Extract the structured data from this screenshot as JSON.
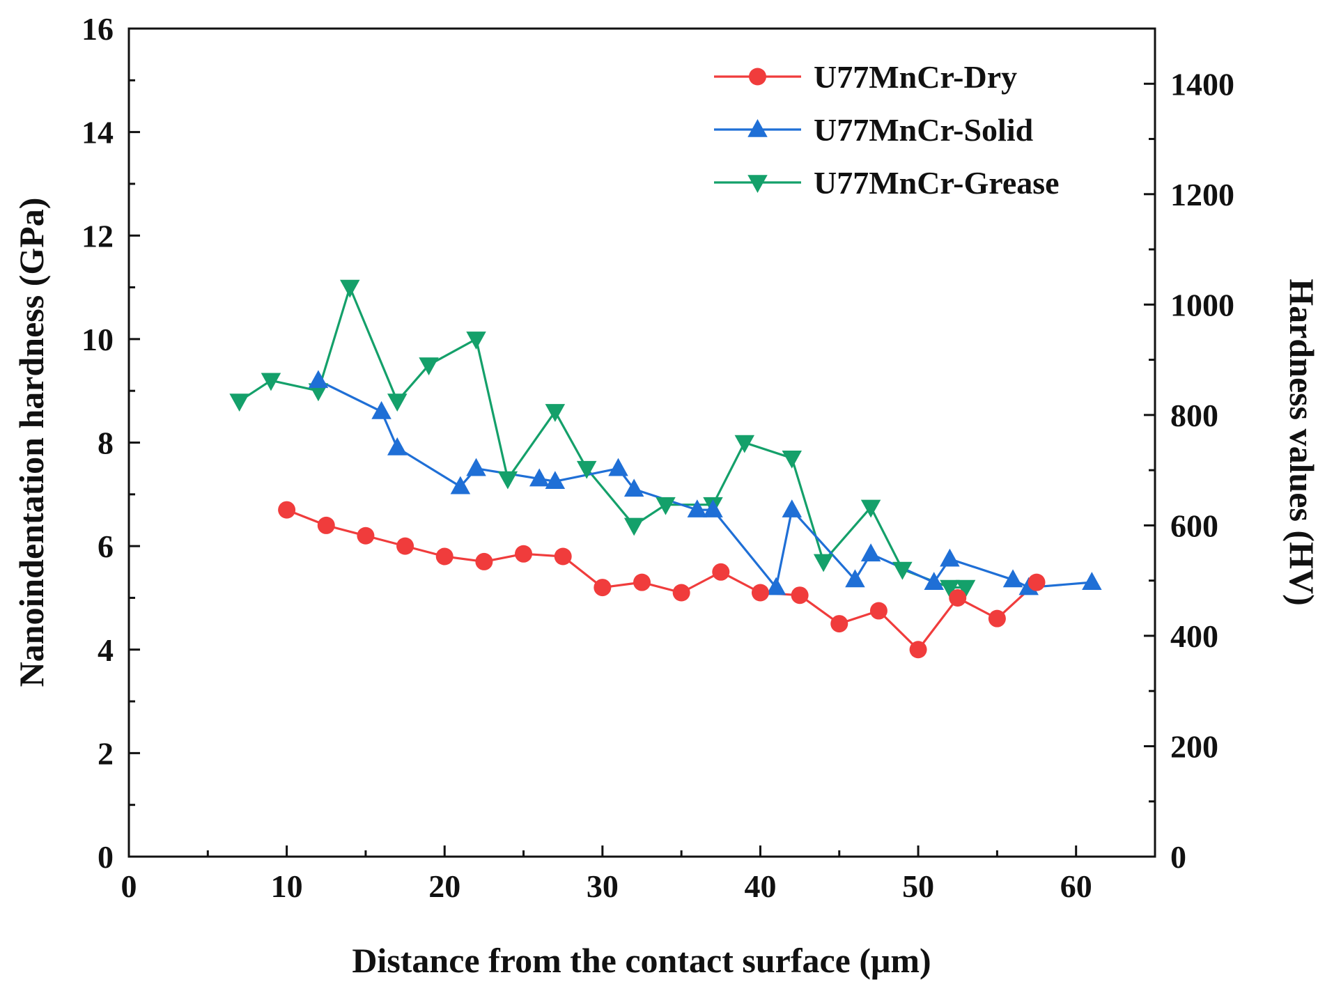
{
  "chart_data": {
    "type": "line",
    "title": "",
    "xlabel": "Distance from the contact surface (μm)",
    "ylabel": "Nanoindentation hardness (GPa)",
    "y2label": "Hardness values (HV)",
    "xlim": [
      0,
      65
    ],
    "ylim": [
      0,
      16
    ],
    "y2lim": [
      0,
      1500
    ],
    "xticks": [
      0,
      10,
      20,
      30,
      40,
      50,
      60
    ],
    "yticks": [
      0,
      2,
      4,
      6,
      8,
      10,
      12,
      14,
      16
    ],
    "y2ticks": [
      0,
      200,
      400,
      600,
      800,
      1000,
      1200,
      1400
    ],
    "legend_position": "top-right",
    "grid": false,
    "series": [
      {
        "name": "U77MnCr-Dry",
        "color": "#f03c3c",
        "marker": "circle",
        "x": [
          10,
          12.5,
          15,
          17.5,
          20,
          22.5,
          25,
          27.5,
          30,
          32.5,
          35,
          37.5,
          40,
          42.5,
          45,
          47.5,
          50,
          52.5,
          55,
          57.5
        ],
        "values": [
          6.7,
          6.4,
          6.2,
          6.0,
          5.8,
          5.7,
          5.85,
          5.8,
          5.2,
          5.3,
          5.1,
          5.5,
          5.1,
          5.05,
          4.5,
          4.75,
          4.0,
          5.0,
          4.6,
          5.3
        ]
      },
      {
        "name": "U77MnCr-Solid",
        "color": "#1f6fd6",
        "marker": "triangle-up",
        "x": [
          12,
          16,
          17,
          21,
          22,
          26,
          27,
          31,
          32,
          36,
          37,
          41,
          42,
          46,
          47,
          51,
          52,
          56,
          57,
          61
        ],
        "values": [
          9.2,
          8.6,
          7.9,
          7.15,
          7.5,
          7.3,
          7.25,
          7.5,
          7.1,
          6.7,
          6.7,
          5.2,
          6.7,
          5.35,
          5.85,
          5.3,
          5.75,
          5.35,
          5.2,
          5.3
        ]
      },
      {
        "name": "U77MnCr-Grease",
        "color": "#14a06a",
        "marker": "triangle-down",
        "x": [
          7,
          9,
          12,
          14,
          17,
          19,
          22,
          24,
          27,
          29,
          32,
          34,
          37,
          39,
          42,
          44,
          47,
          49,
          52,
          53
        ],
        "values": [
          8.8,
          9.2,
          9.0,
          11.0,
          8.8,
          9.5,
          10.0,
          7.3,
          8.6,
          7.5,
          6.4,
          6.8,
          6.8,
          8.0,
          7.7,
          5.7,
          6.75,
          5.55,
          5.2,
          5.2
        ]
      }
    ]
  }
}
